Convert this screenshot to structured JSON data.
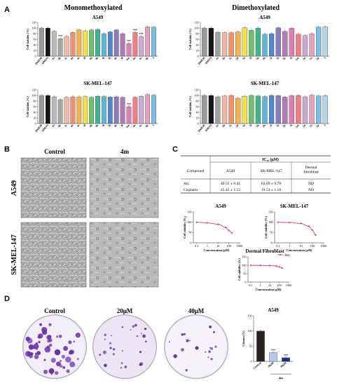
{
  "panels": {
    "a": "A",
    "b": "B",
    "c": "C",
    "d": "D"
  },
  "section_titles": {
    "mono": "Monomethoxylated",
    "di": "Dimethoxylated"
  },
  "bar_colors": {
    "mono": [
      "#9a9a9a",
      "#151515",
      "#b9b9b9",
      "#a8a8a8",
      "#f0b7a6",
      "#f08f6f",
      "#f6b24a",
      "#f3e14a",
      "#6fc06a",
      "#3fb58e",
      "#5fb7d8",
      "#4f88c9",
      "#8a7bbd",
      "#b07ab6",
      "#de7eb4",
      "#f07d84",
      "#cfa7d3",
      "#e4a0bd",
      "#7bbfe6",
      "#b3d6e6",
      "#d9ecb6"
    ],
    "di": [
      "#9a9a9a",
      "#151515",
      "#a0a0a0",
      "#f0b7a6",
      "#f08f6f",
      "#f6b24a",
      "#f2e04d",
      "#6fc06a",
      "#3fb58e",
      "#5fb7d8",
      "#4f88c9",
      "#8a7bbd",
      "#b07ab6",
      "#de7eb4",
      "#f07d84",
      "#cfa7d3",
      "#e4a0bd",
      "#7bbfe6",
      "#b3d6e6",
      "#d9ecb6"
    ]
  },
  "chart_data": [
    {
      "type": "bar",
      "title": "A549",
      "ylabel": "Cell viability (%)",
      "ylim": [
        0,
        120
      ],
      "yticks": [
        "0",
        "20",
        "40",
        "60",
        "80",
        "100",
        "120"
      ],
      "categories": [
        "DMEM",
        "DMSO",
        "4a",
        "4b",
        "4c",
        "4d",
        "4e",
        "4f",
        "4g",
        "4h",
        "4i",
        "4j",
        "4k",
        "4l",
        "4m",
        "4n",
        "4o",
        "4p",
        "1"
      ],
      "values": [
        100,
        100,
        88,
        62,
        70,
        84,
        93,
        90,
        93,
        95,
        80,
        86,
        93,
        80,
        45,
        84,
        70,
        104,
        103
      ],
      "annotations": [
        {
          "category": "4b",
          "label": "***"
        },
        {
          "category": "4m",
          "label": "***"
        },
        {
          "category": "4n",
          "label": "***"
        },
        {
          "category": "4o",
          "label": "***"
        }
      ]
    },
    {
      "type": "bar",
      "title": "A549",
      "ylabel": "Cell viability (%)",
      "ylim": [
        0,
        120
      ],
      "yticks": [
        "0",
        "20",
        "40",
        "60",
        "80",
        "100",
        "120"
      ],
      "categories": [
        "DMEM",
        "DMSO",
        "5a",
        "5b",
        "5c",
        "5d",
        "5e",
        "5f",
        "5g",
        "5h",
        "5i",
        "5j",
        "5k",
        "5l",
        "5m",
        "5n",
        "5o",
        "5p",
        "2"
      ],
      "values": [
        100,
        100,
        85,
        83,
        83,
        86,
        101,
        92,
        100,
        78,
        80,
        101,
        88,
        99,
        78,
        73,
        80,
        103,
        104
      ],
      "annotations": []
    },
    {
      "type": "bar",
      "title": "SK-MEL-147",
      "ylabel": "Cell viability (%)",
      "ylim": [
        0,
        120
      ],
      "yticks": [
        "0",
        "20",
        "40",
        "60",
        "80",
        "100",
        "120"
      ],
      "categories": [
        "DMEM",
        "DMSO",
        "4a",
        "4b",
        "4c",
        "4d",
        "4e",
        "4f",
        "4g",
        "4h",
        "4i",
        "4j",
        "4k",
        "4l",
        "4m",
        "4n",
        "4o",
        "4p",
        "1"
      ],
      "values": [
        100,
        100,
        95,
        85,
        93,
        95,
        95,
        96,
        93,
        97,
        96,
        94,
        95,
        93,
        60,
        93,
        97,
        103,
        101
      ],
      "annotations": [
        {
          "category": "4m",
          "label": "***"
        }
      ]
    },
    {
      "type": "bar",
      "title": "SK-MEL-147",
      "ylabel": "Cell viability (%)",
      "ylim": [
        0,
        120
      ],
      "yticks": [
        "0",
        "20",
        "40",
        "60",
        "80",
        "100",
        "120"
      ],
      "categories": [
        "DMEM",
        "DMSO",
        "5a",
        "5b",
        "5c",
        "5d",
        "5e",
        "5f",
        "5g",
        "5h",
        "5i",
        "5j",
        "5k",
        "5l",
        "5m",
        "5n",
        "5o",
        "5p",
        "2"
      ],
      "values": [
        100,
        100,
        95,
        98,
        100,
        90,
        97,
        100,
        98,
        96,
        100,
        99,
        94,
        99,
        100,
        95,
        101,
        98,
        99
      ],
      "annotations": []
    },
    {
      "type": "line",
      "title": "A549",
      "xlabel": "Concentration (μM)",
      "ylabel": "Cell viability (%)",
      "xscale": "log",
      "ylim": [
        0,
        150
      ],
      "yticks": [
        "0",
        "50",
        "100",
        "150"
      ],
      "xticks": [
        "0.1",
        "1",
        "10",
        "100",
        "1000"
      ],
      "series": [
        {
          "x": [
            0.1,
            1,
            10,
            50,
            100,
            200
          ],
          "y": [
            100,
            97,
            90,
            75,
            60,
            48
          ]
        }
      ]
    },
    {
      "type": "line",
      "title": "SK-MEL-147",
      "xlabel": "Concentration (μM)",
      "ylabel": "Cell viability (%)",
      "xscale": "log",
      "ylim": [
        0,
        150
      ],
      "yticks": [
        "0",
        "50",
        "100",
        "150"
      ],
      "xticks": [
        "0.1",
        "1",
        "10",
        "100",
        "1000"
      ],
      "series": [
        {
          "x": [
            0.1,
            1,
            10,
            50,
            100,
            200
          ],
          "y": [
            100,
            99,
            94,
            80,
            62,
            38
          ]
        }
      ]
    },
    {
      "type": "line",
      "title": "Dermal Fibroblast",
      "xlabel": "Concentration (μM)",
      "ylabel": "Cell viability (%)",
      "xscale": "log",
      "ylim": [
        0,
        150
      ],
      "yticks": [
        "0",
        "50",
        "100",
        "150"
      ],
      "xticks": [
        "0.1",
        "1",
        "10",
        "100",
        "1000"
      ],
      "series": [
        {
          "name": "4m",
          "x": [
            0.1,
            1,
            10,
            50,
            100,
            200
          ],
          "y": [
            100,
            99,
            98,
            95,
            90,
            84
          ]
        }
      ]
    },
    {
      "type": "bar",
      "title": "A549",
      "ylabel": "Colonies (%)",
      "ylim": [
        0,
        150
      ],
      "yticks": [
        "0",
        "50",
        "100",
        "150"
      ],
      "categories": [
        "Control",
        "20μM",
        "40μM"
      ],
      "values": [
        100,
        29,
        12
      ],
      "annotations": [
        {
          "category": "20μM",
          "label": "***"
        },
        {
          "category": "40μM",
          "label": "***"
        }
      ],
      "group_label": "4m"
    },
    {
      "type": "table",
      "header_group": "IC₅₀ (μM)",
      "columns": [
        "Compound",
        "A549",
        "SK-MEL-147",
        "Dermal fibroblast"
      ],
      "rows": [
        [
          "4m",
          "40.55 ± 0.41",
          "62.69 ± 0.70",
          "ND"
        ],
        [
          "Cisplatin",
          "25.45 ± 1.55",
          "19.54 ± 1.10",
          "ND"
        ]
      ]
    }
  ],
  "micro": {
    "col_labels": [
      "Control",
      "4m"
    ],
    "row_labels": [
      "A549",
      "SK-MEL-147"
    ]
  },
  "colony": {
    "labels": [
      "Control",
      "20μM",
      "40μM"
    ],
    "counts": [
      55,
      26,
      18
    ],
    "dot_color": "#6b2fa8"
  }
}
